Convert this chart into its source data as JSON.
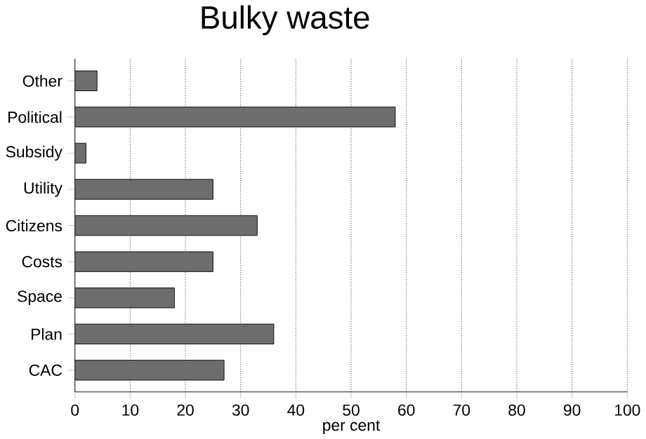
{
  "chart_data": {
    "type": "bar",
    "orientation": "horizontal",
    "title": "Bulky waste",
    "xlabel": "per cent",
    "categories": [
      "Other",
      "Political",
      "Subsidy",
      "Utility",
      "Citizens",
      "Costs",
      "Space",
      "Plan",
      "CAC"
    ],
    "values": [
      4,
      58,
      2,
      25,
      33,
      25,
      18,
      36,
      27
    ],
    "color": "#6e6e6e",
    "xlim": [
      0,
      100
    ],
    "xticks": [
      0,
      10,
      20,
      30,
      40,
      50,
      60,
      70,
      80,
      90,
      100
    ],
    "grid": "x"
  }
}
